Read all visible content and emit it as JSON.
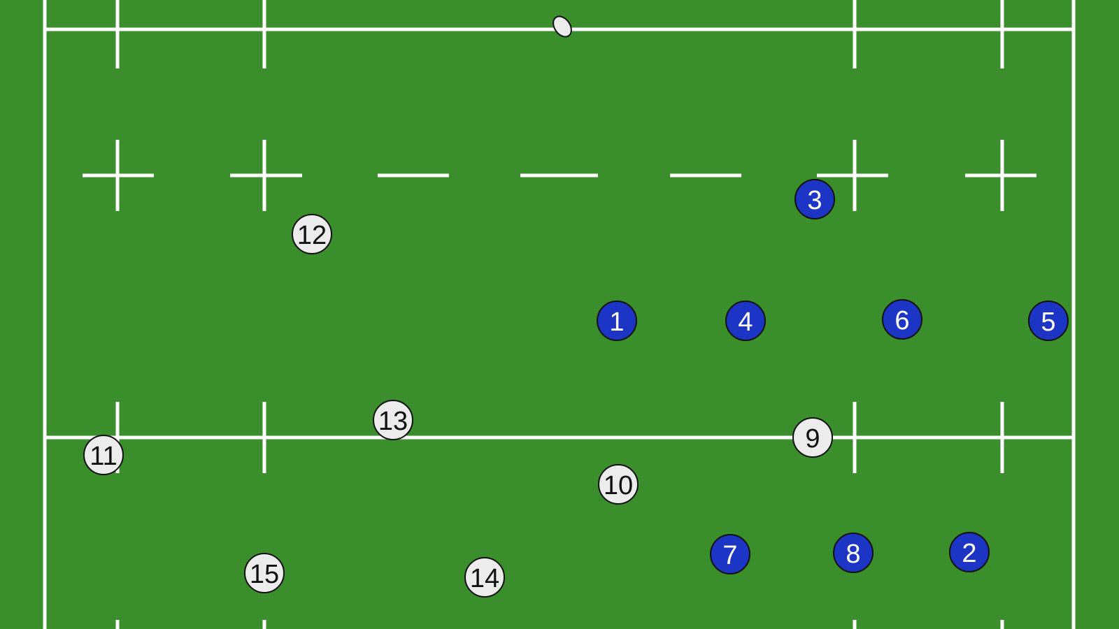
{
  "colors": {
    "pitch": "#3a8e2c",
    "lines": "#ffffff",
    "team_a_fill": "#1c35c4",
    "team_a_text": "#ffffff",
    "team_b_fill": "#ececec",
    "team_b_text": "#111111",
    "outline": "#111111"
  },
  "ball": {
    "icon": "rugby-ball-icon"
  },
  "team_a": {
    "players": [
      {
        "number": "1"
      },
      {
        "number": "2"
      },
      {
        "number": "3"
      },
      {
        "number": "4"
      },
      {
        "number": "5"
      },
      {
        "number": "6"
      },
      {
        "number": "7"
      },
      {
        "number": "8"
      }
    ]
  },
  "team_b": {
    "players": [
      {
        "number": "9"
      },
      {
        "number": "10"
      },
      {
        "number": "11"
      },
      {
        "number": "12"
      },
      {
        "number": "13"
      },
      {
        "number": "14"
      },
      {
        "number": "15"
      }
    ]
  }
}
